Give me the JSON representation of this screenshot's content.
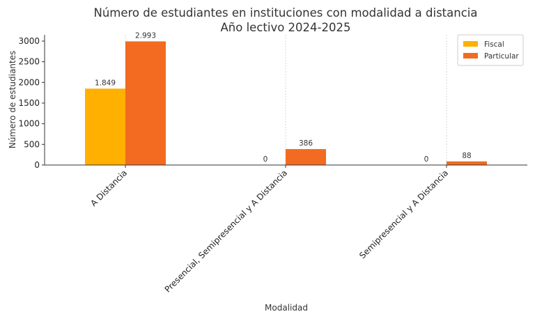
{
  "chart_data": {
    "type": "bar",
    "title": "Número de estudiantes en instituciones con modalidad a distancia",
    "subtitle": "Año lectivo 2024-2025",
    "xlabel": "Modalidad",
    "ylabel": "Número de estudiantes",
    "categories": [
      "A Distancia",
      "Presencial, Semipresencial y A Distancia",
      "Semipresencial y A Distancia"
    ],
    "series": [
      {
        "name": "Fiscal",
        "color": "#FFB000",
        "values": [
          1849,
          0,
          0
        ],
        "labels": [
          "1.849",
          "0",
          "0"
        ]
      },
      {
        "name": "Particular",
        "color": "#F26B21",
        "values": [
          2993,
          386,
          88
        ],
        "labels": [
          "2.993",
          "386",
          "88"
        ]
      }
    ],
    "ylim": [
      0,
      3150
    ],
    "yticks": [
      0,
      500,
      1000,
      1500,
      2000,
      2500,
      3000
    ],
    "ytick_labels": [
      "0",
      "500",
      "1000",
      "1500",
      "2000",
      "2500",
      "3000"
    ],
    "grid": "vertical dashed at category positions",
    "legend": "top-right"
  }
}
